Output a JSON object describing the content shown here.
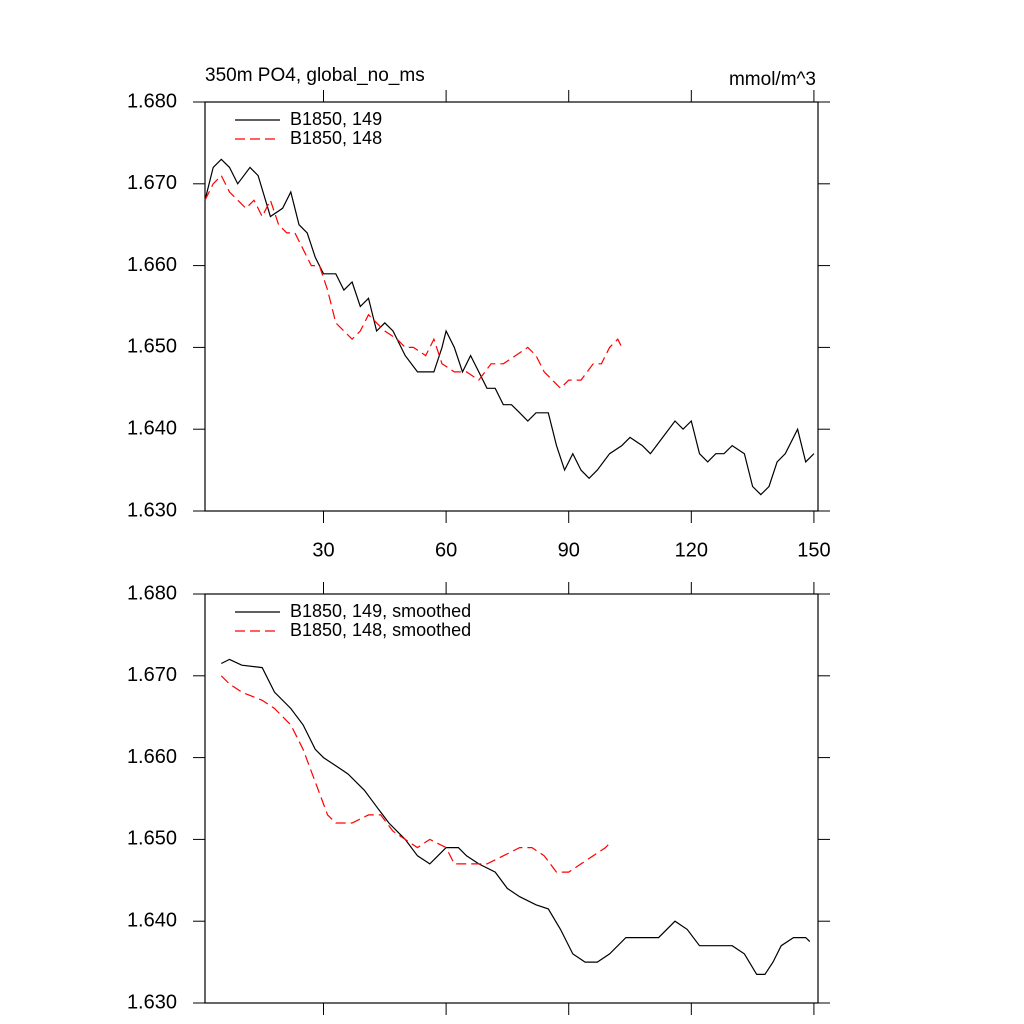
{
  "chart_data": [
    {
      "type": "line",
      "title": "350m PO4, global_no_ms",
      "y_units": "mmol/m^3",
      "xlim": [
        1,
        151
      ],
      "xticks": [
        30,
        60,
        90,
        120,
        150
      ],
      "ylim": [
        1.63,
        1.68
      ],
      "yticks": [
        {
          "value": 1.63,
          "label": "1.630"
        },
        {
          "value": 1.64,
          "label": "1.640"
        },
        {
          "value": 1.65,
          "label": "1.650"
        },
        {
          "value": 1.66,
          "label": "1.660"
        },
        {
          "value": 1.67,
          "label": "1.670"
        },
        {
          "value": 1.68,
          "label": "1.680"
        }
      ],
      "show_x_tick_labels": true,
      "series": [
        {
          "name": "B1850, 149",
          "color": "#000000",
          "line_style": "solid",
          "x": [
            1,
            3,
            5,
            7,
            9,
            12,
            14,
            17,
            20,
            22,
            24,
            26,
            28,
            30,
            33,
            35,
            37,
            39,
            41,
            43,
            45,
            47,
            50,
            53,
            55,
            57,
            59,
            60,
            62,
            64,
            66,
            68,
            70,
            72,
            74,
            76,
            78,
            80,
            82,
            85,
            87,
            89,
            91,
            93,
            95,
            97,
            100,
            103,
            105,
            108,
            110,
            113,
            116,
            118,
            120,
            122,
            124,
            126,
            128,
            130,
            133,
            135,
            137,
            139,
            141,
            143,
            146,
            148,
            150
          ],
          "values": [
            1.668,
            1.672,
            1.673,
            1.672,
            1.67,
            1.672,
            1.671,
            1.666,
            1.667,
            1.669,
            1.665,
            1.664,
            1.661,
            1.659,
            1.659,
            1.657,
            1.658,
            1.655,
            1.656,
            1.652,
            1.653,
            1.652,
            1.649,
            1.647,
            1.647,
            1.647,
            1.65,
            1.652,
            1.65,
            1.647,
            1.649,
            1.647,
            1.645,
            1.645,
            1.643,
            1.643,
            1.642,
            1.641,
            1.642,
            1.642,
            1.638,
            1.635,
            1.637,
            1.635,
            1.634,
            1.635,
            1.637,
            1.638,
            1.639,
            1.638,
            1.637,
            1.639,
            1.641,
            1.64,
            1.641,
            1.637,
            1.636,
            1.637,
            1.637,
            1.638,
            1.637,
            1.633,
            1.632,
            1.633,
            1.636,
            1.637,
            1.64,
            1.636,
            1.637
          ]
        },
        {
          "name": "B1850, 148",
          "color": "#ff0000",
          "line_style": "dashed",
          "x": [
            1,
            3,
            5,
            7,
            9,
            11,
            13,
            15,
            17,
            19,
            21,
            23,
            25,
            27,
            29,
            31,
            33,
            35,
            37,
            39,
            41,
            43,
            45,
            48,
            50,
            52,
            55,
            57,
            59,
            62,
            65,
            68,
            71,
            74,
            77,
            80,
            82,
            84,
            86,
            88,
            90,
            93,
            96,
            98,
            100,
            102,
            103
          ],
          "values": [
            1.668,
            1.67,
            1.671,
            1.669,
            1.668,
            1.667,
            1.668,
            1.666,
            1.668,
            1.665,
            1.664,
            1.664,
            1.662,
            1.66,
            1.66,
            1.657,
            1.653,
            1.652,
            1.651,
            1.652,
            1.654,
            1.653,
            1.652,
            1.651,
            1.65,
            1.65,
            1.649,
            1.651,
            1.648,
            1.647,
            1.647,
            1.646,
            1.648,
            1.648,
            1.649,
            1.65,
            1.649,
            1.647,
            1.646,
            1.645,
            1.646,
            1.646,
            1.648,
            1.648,
            1.65,
            1.651,
            1.65
          ]
        }
      ]
    },
    {
      "type": "line",
      "xlim": [
        1,
        151
      ],
      "xticks": [
        30,
        60,
        90,
        120,
        150
      ],
      "ylim": [
        1.63,
        1.68
      ],
      "yticks": [
        {
          "value": 1.63,
          "label": "1.630"
        },
        {
          "value": 1.64,
          "label": "1.640"
        },
        {
          "value": 1.65,
          "label": "1.650"
        },
        {
          "value": 1.66,
          "label": "1.660"
        },
        {
          "value": 1.67,
          "label": "1.670"
        },
        {
          "value": 1.68,
          "label": "1.680"
        }
      ],
      "show_x_tick_labels": false,
      "series": [
        {
          "name": "B1850, 149, smoothed",
          "color": "#000000",
          "line_style": "solid",
          "x": [
            5,
            7,
            10,
            15,
            18,
            22,
            25,
            28,
            30,
            33,
            36,
            40,
            43,
            46,
            50,
            53,
            56,
            58,
            60,
            63,
            65,
            68,
            72,
            75,
            78,
            82,
            85,
            88,
            91,
            94,
            97,
            100,
            104,
            108,
            112,
            116,
            119,
            122,
            126,
            130,
            133,
            136,
            138,
            140,
            142,
            145,
            148,
            149
          ],
          "values": [
            1.6715,
            1.672,
            1.6713,
            1.671,
            1.668,
            1.666,
            1.664,
            1.661,
            1.66,
            1.659,
            1.658,
            1.656,
            1.654,
            1.652,
            1.65,
            1.648,
            1.647,
            1.648,
            1.649,
            1.649,
            1.648,
            1.647,
            1.646,
            1.644,
            1.643,
            1.642,
            1.6415,
            1.639,
            1.636,
            1.635,
            1.635,
            1.636,
            1.638,
            1.638,
            1.638,
            1.64,
            1.639,
            1.637,
            1.637,
            1.637,
            1.636,
            1.6335,
            1.6335,
            1.635,
            1.637,
            1.638,
            1.638,
            1.6375
          ]
        },
        {
          "name": "B1850, 148, smoothed",
          "color": "#ff0000",
          "line_style": "dashed",
          "x": [
            5,
            7,
            10,
            15,
            18,
            22,
            25,
            28,
            31,
            33,
            37,
            41,
            44,
            47,
            50,
            53,
            56,
            60,
            62,
            66,
            70,
            74,
            78,
            81,
            84,
            87,
            90,
            93,
            96,
            99,
            100
          ],
          "values": [
            1.67,
            1.669,
            1.668,
            1.667,
            1.666,
            1.664,
            1.661,
            1.657,
            1.653,
            1.652,
            1.652,
            1.653,
            1.653,
            1.651,
            1.65,
            1.649,
            1.65,
            1.649,
            1.647,
            1.647,
            1.647,
            1.648,
            1.649,
            1.649,
            1.648,
            1.646,
            1.646,
            1.647,
            1.648,
            1.649,
            1.6495
          ]
        }
      ]
    }
  ]
}
